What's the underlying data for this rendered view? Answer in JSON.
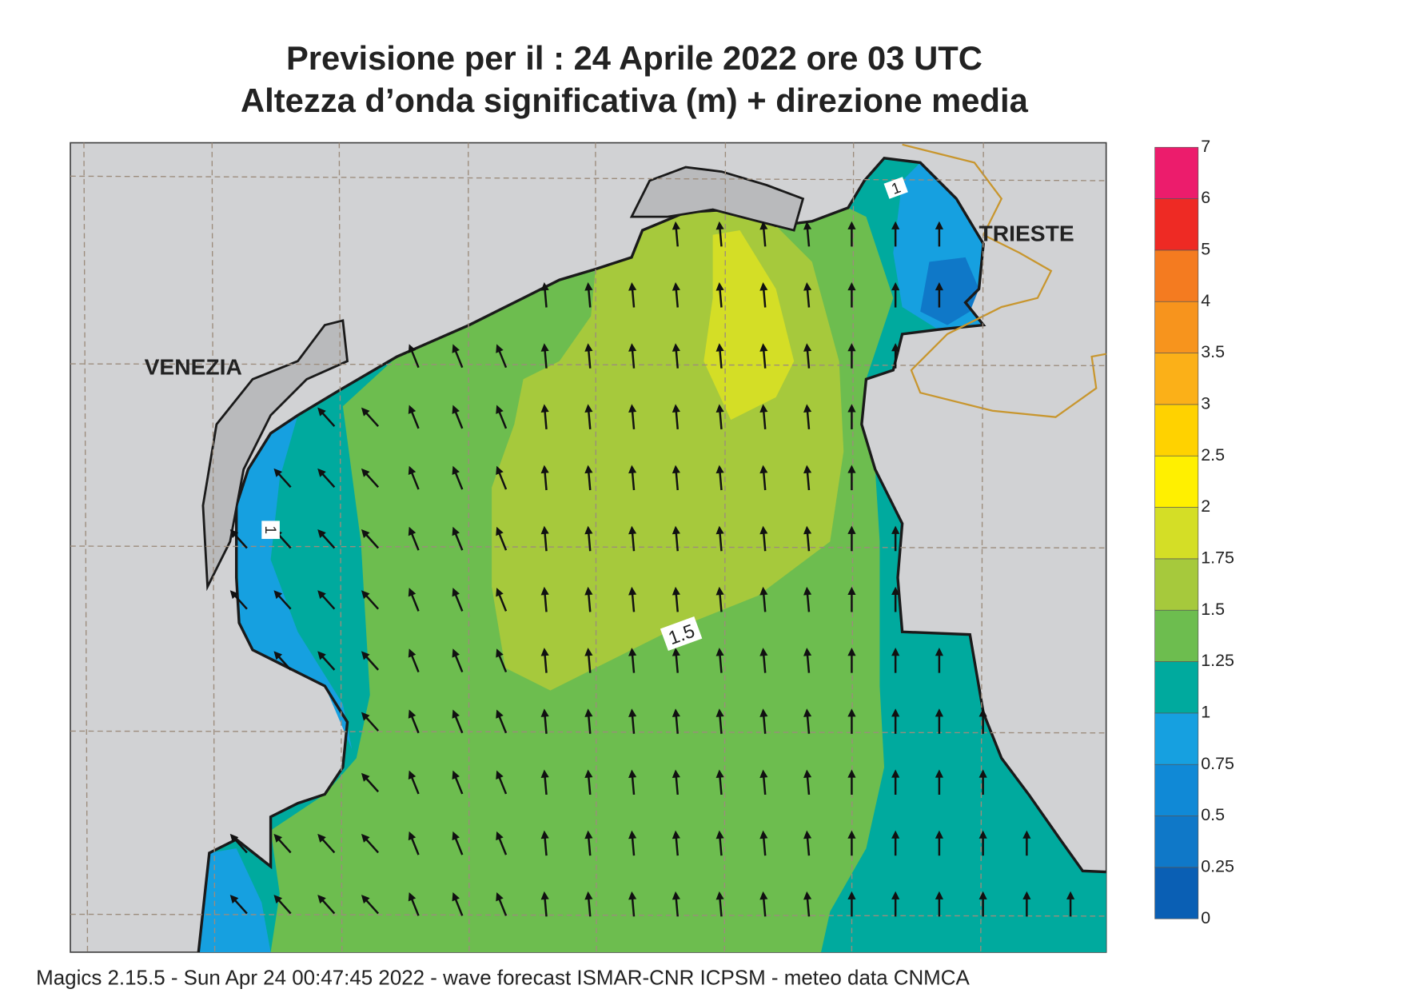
{
  "header": {
    "title": "Previsione per il  :  24   Aprile  2022   ore 03 UTC",
    "subtitle": "Altezza d’onda significativa (m) + direzione media"
  },
  "map": {
    "cities": [
      "VENEZIA",
      "TRIESTE"
    ],
    "contour_labels": [
      "1.5",
      "1",
      "1"
    ]
  },
  "colorbar": {
    "levels": [
      "0",
      "0.25",
      "0.5",
      "0.75",
      "1",
      "1.25",
      "1.5",
      "1.75",
      "2",
      "2.5",
      "3",
      "3.5",
      "4",
      "5",
      "6",
      "7"
    ],
    "colors": [
      "#0a5fb4",
      "#0f78c8",
      "#1089d6",
      "#16a0e0",
      "#00aa9e",
      "#6dbd4f",
      "#a6c93c",
      "#d4de26",
      "#fff000",
      "#ffd200",
      "#fbb018",
      "#f7941d",
      "#f47b20",
      "#ee2a24",
      "#ec1c6c"
    ]
  },
  "footer": "Magics 2.15.5 - Sun Apr 24 00:47:45 2022 - wave forecast  ISMAR-CNR  ICPSM - meteo data    CNMCA"
}
